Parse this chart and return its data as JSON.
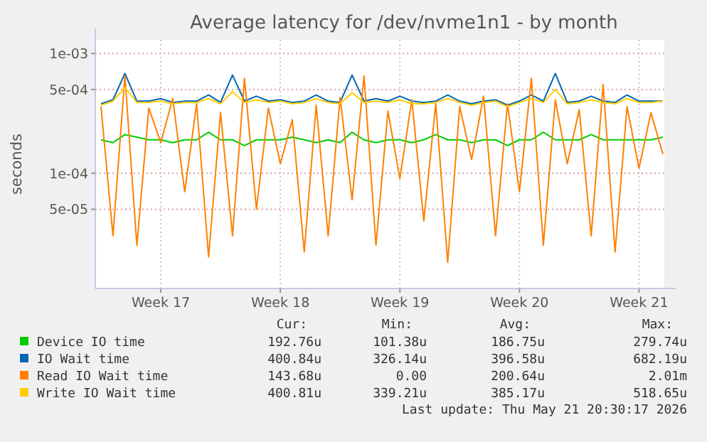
{
  "chart_data": {
    "type": "line",
    "title": "Average latency for /dev/nvme1n1 - by month",
    "ylabel": "seconds",
    "log": "y",
    "grid": true,
    "legend": "bottom",
    "marker": "none",
    "line_style": "solid",
    "categories": [
      null,
      null,
      null,
      null,
      null,
      "Week 17",
      null,
      null,
      null,
      null,
      null,
      null,
      null,
      null,
      null,
      "Week 18",
      null,
      null,
      null,
      null,
      null,
      null,
      null,
      null,
      null,
      "Week 19",
      null,
      null,
      null,
      null,
      null,
      null,
      null,
      null,
      null,
      "Week 20",
      null,
      null,
      null,
      null,
      null,
      null,
      null,
      null,
      null,
      "Week 21",
      null,
      null
    ],
    "ylim": [
      1.09e-05,
      0.0013
    ],
    "yticks": [
      {
        "value": 0.001,
        "label": "1e-03"
      },
      {
        "value": 0.0005,
        "label": "5e-04"
      },
      {
        "value": 0.0001,
        "label": "1e-04"
      },
      {
        "value": 5e-05,
        "label": "5e-05"
      }
    ],
    "series": [
      {
        "name": "Device IO time",
        "color": "#00cc00",
        "values": [
          0.00019,
          0.00018,
          0.00021,
          0.0002,
          0.00019,
          0.00019,
          0.00018,
          0.00019,
          0.00019,
          0.00022,
          0.00019,
          0.00019,
          0.00017,
          0.00019,
          0.00019,
          0.00019,
          0.0002,
          0.00019,
          0.00018,
          0.00019,
          0.00018,
          0.00022,
          0.00019,
          0.00018,
          0.00019,
          0.00019,
          0.00018,
          0.00019,
          0.00021,
          0.00019,
          0.00019,
          0.00018,
          0.00019,
          0.00019,
          0.00017,
          0.00019,
          0.00019,
          0.00022,
          0.00019,
          0.00019,
          0.00019,
          0.00021,
          0.00019,
          0.00019,
          0.00019,
          0.00019,
          0.00019,
          0.0002
        ]
      },
      {
        "name": "IO Wait time",
        "color": "#0066b3",
        "values": [
          0.00038,
          0.00041,
          0.00068,
          0.0004,
          0.0004,
          0.00042,
          0.00039,
          0.0004,
          0.0004,
          0.00045,
          0.00039,
          0.00066,
          0.0004,
          0.00044,
          0.0004,
          0.00041,
          0.00039,
          0.0004,
          0.00045,
          0.0004,
          0.00039,
          0.00066,
          0.0004,
          0.00042,
          0.0004,
          0.00044,
          0.0004,
          0.00039,
          0.0004,
          0.00045,
          0.0004,
          0.00038,
          0.0004,
          0.00041,
          0.00037,
          0.0004,
          0.00045,
          0.0004,
          0.00068,
          0.00039,
          0.0004,
          0.00044,
          0.0004,
          0.00039,
          0.00045,
          0.0004,
          0.0004,
          0.0004
        ]
      },
      {
        "name": "Read IO Wait time",
        "color": "#ff8000",
        "values": [
          0.00036,
          3e-05,
          0.00065,
          2.5e-05,
          0.00035,
          0.00018,
          0.00042,
          7e-05,
          0.00038,
          2e-05,
          0.00032,
          3e-05,
          0.00062,
          5e-05,
          0.00035,
          0.00012,
          0.00028,
          2.2e-05,
          0.00037,
          3e-05,
          0.00043,
          6e-05,
          0.00065,
          2.5e-05,
          0.00033,
          9e-05,
          0.00041,
          4e-05,
          0.00038,
          1.8e-05,
          0.00036,
          0.00013,
          0.00044,
          3e-05,
          0.00038,
          7e-05,
          0.00062,
          2.5e-05,
          0.00041,
          0.00012,
          0.00034,
          3e-05,
          0.00055,
          2.2e-05,
          0.00036,
          0.00011,
          0.00032,
          0.000144
        ]
      },
      {
        "name": "Write IO Wait time",
        "color": "#ffcc00",
        "values": [
          0.00037,
          0.0004,
          0.00052,
          0.00039,
          0.00039,
          0.0004,
          0.00038,
          0.00039,
          0.00039,
          0.00042,
          0.00038,
          0.00048,
          0.00039,
          0.00041,
          0.00039,
          0.0004,
          0.00038,
          0.00039,
          0.00042,
          0.00039,
          0.00038,
          0.00047,
          0.00039,
          0.0004,
          0.00039,
          0.00041,
          0.00038,
          0.00038,
          0.00039,
          0.00042,
          0.00039,
          0.00037,
          0.00039,
          0.0004,
          0.00036,
          0.00039,
          0.00042,
          0.00039,
          0.0005,
          0.00038,
          0.00039,
          0.00041,
          0.00039,
          0.00038,
          0.00042,
          0.00039,
          0.00039,
          0.0004
        ]
      }
    ],
    "annotations": [
      "Cur:",
      "Min:",
      "Avg:",
      "Max:",
      "192.76u",
      "101.38u",
      "186.75u",
      "279.74u",
      "400.84u",
      "326.14u",
      "396.58u",
      "682.19u",
      "143.68u",
      "0.00",
      "200.64u",
      "2.01m",
      "400.81u",
      "339.21u",
      "385.17u",
      "518.65u",
      "Last update: Thu May 21 20:30:17 2026"
    ]
  }
}
